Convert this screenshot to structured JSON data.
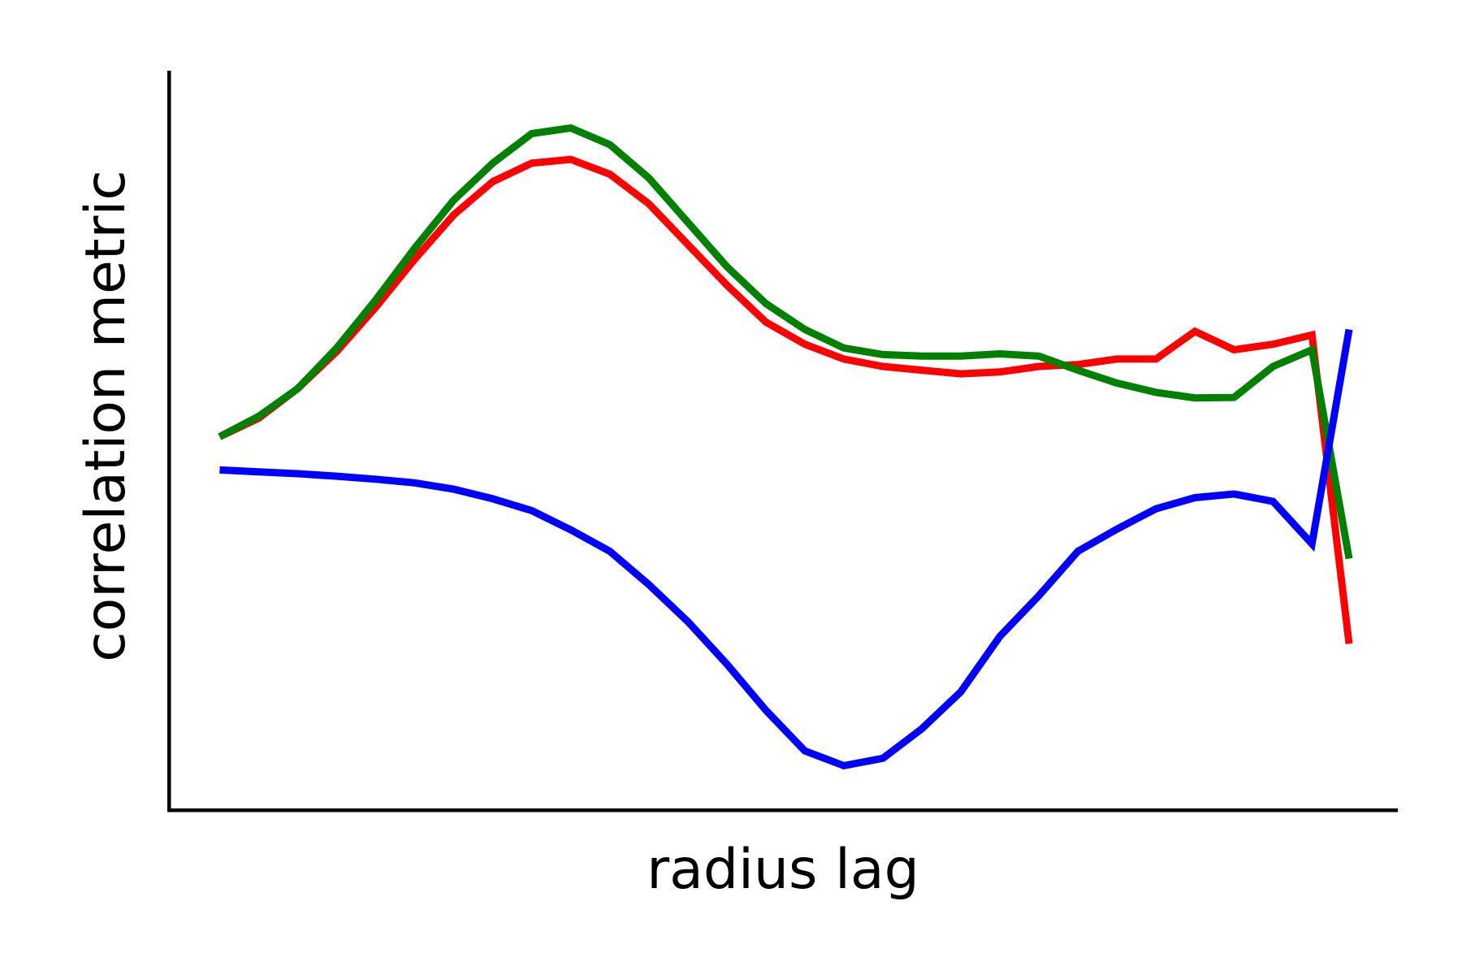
{
  "chart_data": {
    "type": "line",
    "title": "",
    "xlabel": "radius lag",
    "ylabel": "correlation metric",
    "xlim": [
      -1.3,
      30.2
    ],
    "ylim": [
      -1.0,
      1.0
    ],
    "grid": false,
    "legend": "none",
    "show_ticks": false,
    "x": [
      0,
      1,
      2,
      3,
      4,
      5,
      6,
      7,
      8,
      9,
      10,
      11,
      12,
      13,
      14,
      15,
      16,
      17,
      18,
      19,
      20,
      21,
      22,
      23,
      24,
      25,
      26,
      27,
      28,
      28.95
    ],
    "series": [
      {
        "color": "#ff0000",
        "values": [
          0.01,
          0.06,
          0.14,
          0.24,
          0.36,
          0.49,
          0.61,
          0.7,
          0.75,
          0.76,
          0.72,
          0.64,
          0.53,
          0.42,
          0.32,
          0.26,
          0.22,
          0.2,
          0.19,
          0.18,
          0.185,
          0.2,
          0.205,
          0.22,
          0.22,
          0.295,
          0.245,
          0.26,
          0.285,
          -0.55
        ]
      },
      {
        "color": "#008000",
        "values": [
          0.01,
          0.065,
          0.14,
          0.25,
          0.38,
          0.52,
          0.65,
          0.75,
          0.83,
          0.845,
          0.8,
          0.71,
          0.59,
          0.47,
          0.37,
          0.3,
          0.25,
          0.232,
          0.228,
          0.228,
          0.234,
          0.228,
          0.19,
          0.155,
          0.13,
          0.115,
          0.116,
          0.2,
          0.245,
          -0.32
        ]
      },
      {
        "color": "#0000ff",
        "values": [
          -0.08,
          -0.085,
          -0.09,
          -0.097,
          -0.105,
          -0.115,
          -0.132,
          -0.158,
          -0.19,
          -0.242,
          -0.3,
          -0.39,
          -0.49,
          -0.605,
          -0.73,
          -0.84,
          -0.88,
          -0.86,
          -0.78,
          -0.68,
          -0.53,
          -0.42,
          -0.3,
          -0.24,
          -0.185,
          -0.155,
          -0.145,
          -0.165,
          -0.28,
          0.3
        ]
      }
    ]
  }
}
